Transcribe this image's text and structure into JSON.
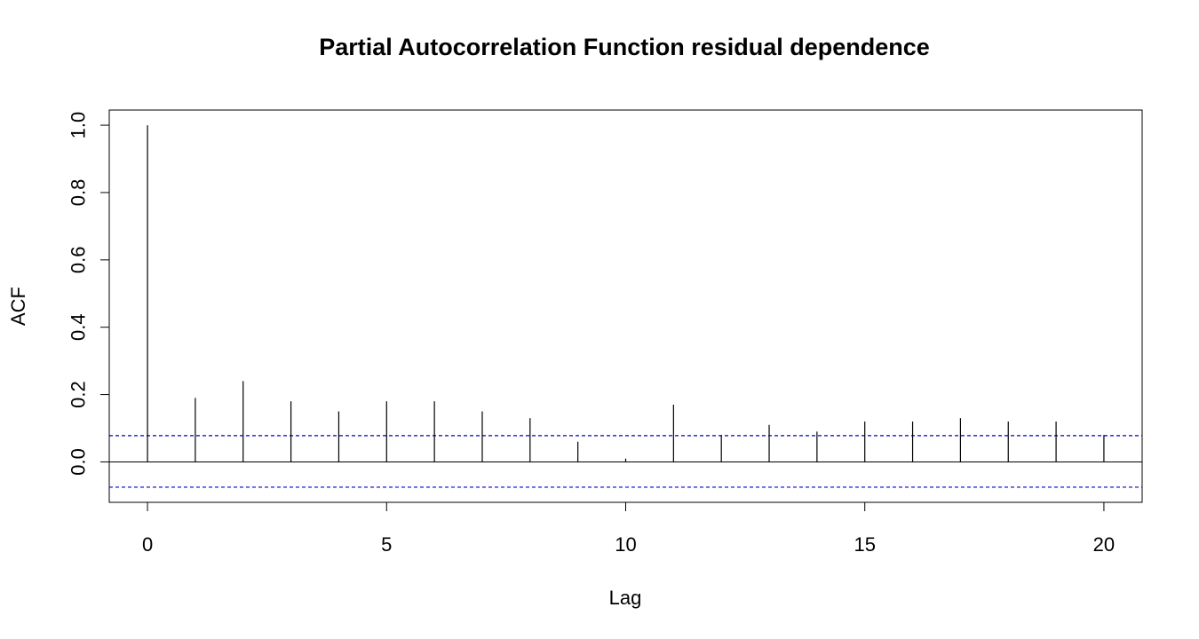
{
  "chart_data": {
    "type": "bar",
    "title": "Partial Autocorrelation Function residual dependence",
    "xlabel": "Lag",
    "ylabel": "ACF",
    "xlim": [
      -0.8,
      20.8
    ],
    "ylim": [
      -0.12,
      1.045
    ],
    "x_ticks": [
      0,
      5,
      10,
      15,
      20
    ],
    "y_ticks": [
      0.0,
      0.2,
      0.4,
      0.6,
      0.8,
      1.0
    ],
    "x_tick_labels": [
      "0",
      "5",
      "10",
      "15",
      "20"
    ],
    "y_tick_labels": [
      "0.0",
      "0.2",
      "0.4",
      "0.6",
      "0.8",
      "1.0"
    ],
    "grid": false,
    "lags": [
      0,
      1,
      2,
      3,
      4,
      5,
      6,
      7,
      8,
      9,
      10,
      11,
      12,
      13,
      14,
      15,
      16,
      17,
      18,
      19,
      20
    ],
    "values": [
      1.0,
      0.19,
      0.24,
      0.18,
      0.15,
      0.18,
      0.18,
      0.15,
      0.13,
      0.06,
      0.01,
      0.17,
      0.08,
      0.11,
      0.09,
      0.12,
      0.12,
      0.13,
      0.12,
      0.12,
      0.08
    ],
    "confidence_bounds": [
      0.078,
      -0.075
    ],
    "colors": {
      "bars": "#000000",
      "confidence": "#0000cc",
      "zero_line": "#000000"
    }
  }
}
